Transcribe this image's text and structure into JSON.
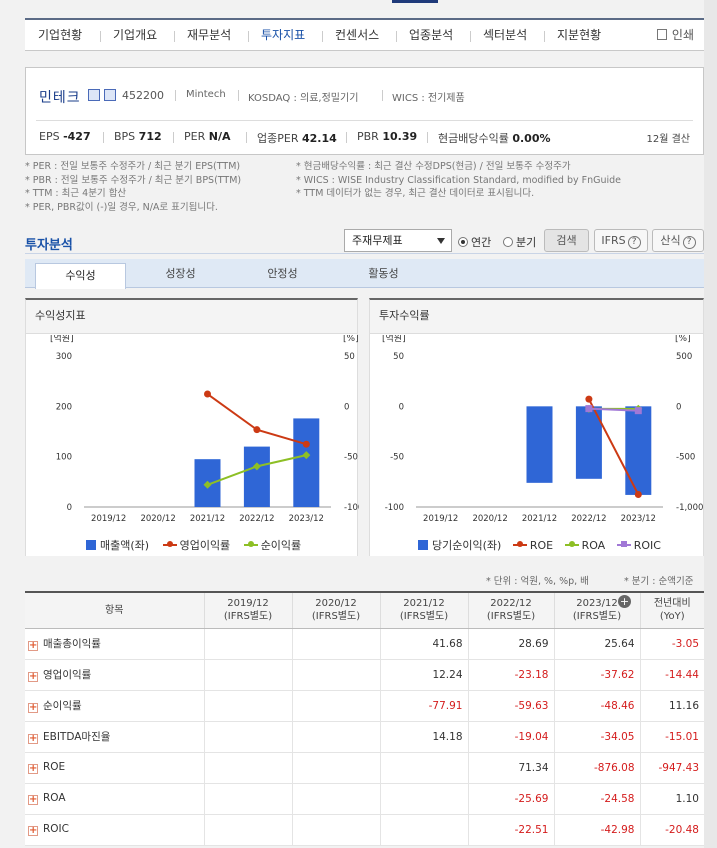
{
  "nav": {
    "items": [
      "기업현황",
      "기업개요",
      "재무분석",
      "투자지표",
      "컨센서스",
      "업종분석",
      "섹터분석",
      "지분현황"
    ],
    "active": "투자지표",
    "print": "인쇄"
  },
  "company": {
    "name": "민테크",
    "code": "452200",
    "eng_name": "Mintech",
    "market": "KOSDAQ : 의료,정밀기기",
    "wics": "WICS : 전기제품",
    "metrics": {
      "eps_label": "EPS",
      "eps": "-427",
      "bps_label": "BPS",
      "bps": "712",
      "per_label": "PER",
      "per": "N/A",
      "sector_per_label": "업종PER",
      "sector_per": "42.14",
      "pbr_label": "PBR",
      "pbr": "10.39",
      "div_label": "현금배당수익률",
      "div": "0.00%"
    },
    "basis": "12월 결산"
  },
  "notes_left": [
    "* PER : 전일 보통주 수정주가 / 최근 분기 EPS(TTM)",
    "* PBR : 전일 보통주 수정주가 / 최근 분기 BPS(TTM)",
    "* TTM : 최근 4분기 합산",
    "* PER, PBR값이 (-)일 경우, N/A로 표기됩니다."
  ],
  "notes_right": [
    "* 현금배당수익률 : 최근 결산 수정DPS(현금) / 전일 보통주 수정주가",
    "* WICS : WISE Industry Classification Standard, modified by FnGuide",
    "* TTM 데이터가 없는 경우, 최근 결산 데이터로 표시됩니다."
  ],
  "section": {
    "title": "투자분석",
    "select_value": "주재무제표",
    "radio_annual": "연간",
    "radio_quarter": "분기",
    "search_btn": "검색",
    "ifrs_btn": "IFRS",
    "formula_btn": "산식"
  },
  "tabs": [
    "수익성",
    "성장성",
    "안정성",
    "활동성"
  ],
  "active_tab": "수익성",
  "chart_data": [
    {
      "type": "bar",
      "title": "수익성지표",
      "ylabel": "[억원]",
      "y2label": "[%]",
      "categories": [
        "2019/12",
        "2020/12",
        "2021/12",
        "2022/12",
        "2023/12"
      ],
      "ylim": [
        0,
        300
      ],
      "yticks": [
        "300",
        "200",
        "100",
        "0"
      ],
      "y2lim": [
        -100,
        50
      ],
      "y2ticks": [
        "50",
        "0",
        "-50",
        "-100"
      ],
      "series": [
        {
          "name": "매출액(좌)",
          "kind": "bar",
          "axis": "left",
          "color": "#2f66d6",
          "values": [
            null,
            null,
            95,
            120,
            176
          ]
        },
        {
          "name": "영업이익률",
          "kind": "line",
          "axis": "right",
          "color": "#cc3a14",
          "values": [
            null,
            null,
            12.24,
            -23.18,
            -37.62
          ]
        },
        {
          "name": "순이익률",
          "kind": "line",
          "axis": "right",
          "color": "#8dbf25",
          "values": [
            null,
            null,
            -77.91,
            -59.63,
            -48.46
          ]
        }
      ]
    },
    {
      "type": "bar",
      "title": "투자수익률",
      "ylabel": "[억원]",
      "y2label": "[%]",
      "categories": [
        "2019/12",
        "2020/12",
        "2021/12",
        "2022/12",
        "2023/12"
      ],
      "ylim": [
        -100,
        50
      ],
      "yticks": [
        "50",
        "0",
        "-50",
        "-100"
      ],
      "y2lim": [
        -1000,
        500
      ],
      "y2ticks": [
        "500",
        "0",
        "-500",
        "-1,000"
      ],
      "series": [
        {
          "name": "당기순이익(좌)",
          "kind": "bar",
          "axis": "left",
          "color": "#2f66d6",
          "values": [
            null,
            null,
            -76,
            -72,
            -88
          ]
        },
        {
          "name": "ROE",
          "kind": "line",
          "axis": "right",
          "color": "#cc3a14",
          "values": [
            null,
            null,
            null,
            71.34,
            -876.08
          ]
        },
        {
          "name": "ROA",
          "kind": "line",
          "axis": "right",
          "color": "#8dbf25",
          "values": [
            null,
            null,
            null,
            -25.69,
            -24.58
          ]
        },
        {
          "name": "ROIC",
          "kind": "line",
          "axis": "right",
          "color": "#a178d6",
          "values": [
            null,
            null,
            null,
            -22.51,
            -42.98
          ]
        }
      ]
    }
  ],
  "unit_note": "* 단위 : 억원, %, %p, 배",
  "quarter_note": "* 분기 : 순액기준",
  "table": {
    "head_item": "항목",
    "columns": [
      {
        "year": "2019/12",
        "basis": "(IFRS별도)"
      },
      {
        "year": "2020/12",
        "basis": "(IFRS별도)"
      },
      {
        "year": "2021/12",
        "basis": "(IFRS별도)"
      },
      {
        "year": "2022/12",
        "basis": "(IFRS별도)"
      },
      {
        "year": "2023/12",
        "basis": "(IFRS별도)"
      }
    ],
    "yoy_head": "전년대비",
    "yoy_sub": "(YoY)",
    "rows": [
      {
        "label": "매출총이익률",
        "values": [
          "",
          "",
          "41.68",
          "28.69",
          "25.64"
        ],
        "yoy": "-3.05"
      },
      {
        "label": "영업이익률",
        "values": [
          "",
          "",
          "12.24",
          "-23.18",
          "-37.62"
        ],
        "yoy": "-14.44"
      },
      {
        "label": "순이익률",
        "values": [
          "",
          "",
          "-77.91",
          "-59.63",
          "-48.46"
        ],
        "yoy": "11.16"
      },
      {
        "label": "EBITDA마진율",
        "values": [
          "",
          "",
          "14.18",
          "-19.04",
          "-34.05"
        ],
        "yoy": "-15.01"
      },
      {
        "label": "ROE",
        "values": [
          "",
          "",
          "",
          "71.34",
          "-876.08"
        ],
        "yoy": "-947.43"
      },
      {
        "label": "ROA",
        "values": [
          "",
          "",
          "",
          "-25.69",
          "-24.58"
        ],
        "yoy": "1.10"
      },
      {
        "label": "ROIC",
        "values": [
          "",
          "",
          "",
          "-22.51",
          "-42.98"
        ],
        "yoy": "-20.48"
      }
    ]
  }
}
